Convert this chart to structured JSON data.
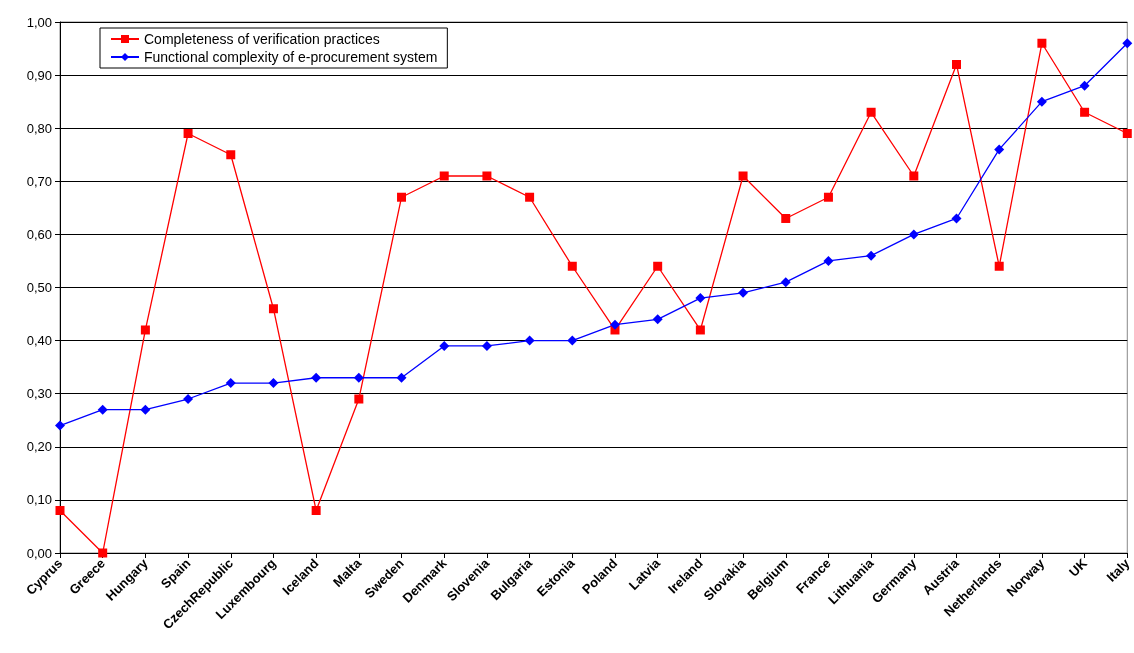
{
  "chart_data": {
    "type": "line",
    "categories": [
      "Cyprus",
      "Greece",
      "Hungary",
      "Spain",
      "CzechRepublic",
      "Luxembourg",
      "Iceland",
      "Malta",
      "Sweden",
      "Denmark",
      "Slovenia",
      "Bulgaria",
      "Estonia",
      "Poland",
      "Latvia",
      "Ireland",
      "Slovakia",
      "Belgium",
      "France",
      "Lithuania",
      "Germany",
      "Austria",
      "Netherlands",
      "Norway",
      "UK",
      "Italy"
    ],
    "series": [
      {
        "name": "Completeness of verification practices",
        "color": "#ff0000",
        "marker": "square",
        "values": [
          0.08,
          0,
          0.42,
          0.79,
          0.75,
          0.46,
          0.08,
          0.29,
          0.67,
          0.71,
          0.71,
          0.67,
          0.54,
          0.42,
          0.54,
          0.42,
          0.71,
          0.63,
          0.67,
          0.83,
          0.71,
          0.92,
          0.54,
          0.96,
          0.83,
          0.79
        ]
      },
      {
        "name": "Functional complexity of e-procurement system",
        "color": "#0000ff",
        "marker": "diamond",
        "values": [
          0.24,
          0.27,
          0.27,
          0.29,
          0.32,
          0.32,
          0.33,
          0.33,
          0.33,
          0.39,
          0.39,
          0.4,
          0.4,
          0.43,
          0.44,
          0.48,
          0.49,
          0.51,
          0.55,
          0.56,
          0.6,
          0.63,
          0.76,
          0.85,
          0.88,
          0.96
        ]
      }
    ],
    "ylim": [
      0,
      1
    ],
    "yticks": [
      {
        "value": 0,
        "label": "0,00"
      },
      {
        "value": 0.1,
        "label": "0,10"
      },
      {
        "value": 0.2,
        "label": "0,20"
      },
      {
        "value": 0.3,
        "label": "0,30"
      },
      {
        "value": 0.4,
        "label": "0,40"
      },
      {
        "value": 0.5,
        "label": "0,50"
      },
      {
        "value": 0.6,
        "label": "0,60"
      },
      {
        "value": 0.7,
        "label": "0,70"
      },
      {
        "value": 0.8,
        "label": "0,80"
      },
      {
        "value": 0.9,
        "label": "0,90"
      },
      {
        "value": 1,
        "label": "1,00"
      }
    ],
    "grid": "y",
    "legend": "top left",
    "line_style": "solid"
  }
}
